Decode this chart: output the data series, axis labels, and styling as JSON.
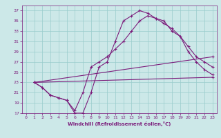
{
  "xlabel": "Windchill (Refroidissement éolien,°C)",
  "xlim": [
    -0.5,
    23.5
  ],
  "ylim": [
    17,
    38
  ],
  "xticks": [
    0,
    1,
    2,
    3,
    4,
    5,
    6,
    7,
    8,
    9,
    10,
    11,
    12,
    13,
    14,
    15,
    16,
    17,
    18,
    19,
    20,
    21,
    22,
    23
  ],
  "yticks": [
    17,
    19,
    21,
    23,
    25,
    27,
    29,
    31,
    33,
    35,
    37
  ],
  "bg_color": "#cce8e8",
  "line_color": "#7b1c7b",
  "grid_color": "#99cccc",
  "lines": [
    {
      "x": [
        1,
        2,
        3,
        4,
        5,
        6,
        7,
        8,
        9,
        10,
        11,
        12,
        13,
        14,
        15,
        16,
        17,
        18,
        19,
        20,
        21,
        22,
        23
      ],
      "y": [
        23,
        22,
        20.5,
        20,
        19.5,
        17,
        17,
        21,
        26,
        27,
        31,
        35,
        36,
        37,
        36.5,
        35.5,
        35,
        33,
        32,
        29,
        27,
        25.5,
        24.5
      ]
    },
    {
      "x": [
        1,
        2,
        3,
        4,
        5,
        6,
        7,
        8,
        9,
        10,
        11,
        12,
        13,
        14,
        15,
        16,
        17,
        18,
        19,
        20,
        21,
        22,
        23
      ],
      "y": [
        23,
        22,
        20.5,
        20,
        19.5,
        17.5,
        21,
        26,
        27,
        28,
        29.5,
        31,
        33,
        35,
        36,
        35.5,
        34.5,
        33.5,
        32,
        30,
        28,
        27,
        26
      ]
    },
    {
      "x": [
        1,
        23
      ],
      "y": [
        23,
        28
      ]
    },
    {
      "x": [
        1,
        23
      ],
      "y": [
        23,
        24
      ]
    }
  ]
}
